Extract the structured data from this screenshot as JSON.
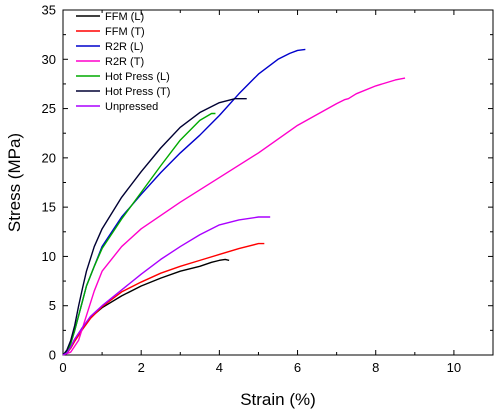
{
  "chart_data": {
    "type": "line",
    "title": "",
    "xlabel": "Strain (%)",
    "ylabel": "Stress (MPa)",
    "xlim": [
      0,
      11
    ],
    "ylim": [
      0,
      35
    ],
    "xticks": [
      0,
      2,
      4,
      6,
      8,
      10
    ],
    "yticks": [
      0,
      5,
      10,
      15,
      20,
      25,
      30,
      35
    ],
    "grid": false,
    "legend_position": "top-left",
    "series": [
      {
        "name": "FFM (L)",
        "color": "#000000",
        "x": [
          0,
          0.1,
          0.2,
          0.3,
          0.5,
          0.7,
          1.0,
          1.5,
          2.0,
          2.5,
          3.0,
          3.5,
          3.8,
          4.0,
          4.15,
          4.25
        ],
        "y": [
          0,
          0.2,
          0.8,
          1.6,
          2.8,
          3.8,
          4.8,
          6.0,
          7.0,
          7.8,
          8.5,
          9.0,
          9.4,
          9.6,
          9.7,
          9.6
        ]
      },
      {
        "name": "FFM (T)",
        "color": "#ff0000",
        "x": [
          0,
          0.1,
          0.2,
          0.3,
          0.5,
          0.7,
          1.0,
          1.5,
          2.0,
          2.5,
          3.0,
          3.5,
          4.0,
          4.5,
          5.0,
          5.15
        ],
        "y": [
          0,
          0.2,
          0.7,
          1.4,
          2.6,
          3.7,
          4.9,
          6.4,
          7.4,
          8.3,
          9.0,
          9.6,
          10.2,
          10.8,
          11.3,
          11.3
        ]
      },
      {
        "name": "R2R (L)",
        "color": "#0000cc",
        "x": [
          0,
          0.1,
          0.2,
          0.3,
          0.4,
          0.5,
          0.6,
          0.8,
          1.0,
          1.5,
          2.0,
          2.5,
          3.0,
          3.5,
          4.0,
          4.5,
          5.0,
          5.5,
          5.8,
          6.0,
          6.2
        ],
        "y": [
          0,
          0.3,
          1.2,
          2.5,
          4.0,
          5.5,
          7.0,
          9.0,
          11.0,
          14.0,
          16.3,
          18.5,
          20.5,
          22.3,
          24.3,
          26.5,
          28.5,
          30.0,
          30.6,
          30.9,
          31.0
        ]
      },
      {
        "name": "R2R (T)",
        "color": "#ff00cc",
        "x": [
          0,
          0.2,
          0.4,
          0.6,
          0.8,
          1.0,
          1.5,
          2.0,
          3.0,
          4.0,
          5.0,
          6.0,
          7.0,
          7.2,
          7.3,
          7.5,
          8.0,
          8.5,
          8.75
        ],
        "y": [
          0,
          0.3,
          1.5,
          4.0,
          6.5,
          8.5,
          11.0,
          12.8,
          15.5,
          18.0,
          20.5,
          23.3,
          25.5,
          25.9,
          26.0,
          26.5,
          27.3,
          27.9,
          28.1
        ]
      },
      {
        "name": "Hot Press (L)",
        "color": "#00aa00",
        "x": [
          0,
          0.1,
          0.2,
          0.3,
          0.4,
          0.5,
          0.6,
          0.8,
          1.0,
          1.5,
          2.0,
          2.5,
          3.0,
          3.5,
          3.8,
          3.9
        ],
        "y": [
          0,
          0.3,
          1.2,
          2.5,
          4.0,
          5.5,
          7.0,
          9.0,
          10.8,
          13.8,
          16.5,
          19.2,
          21.8,
          23.8,
          24.5,
          24.5
        ]
      },
      {
        "name": "Hot Press (T)",
        "color": "#000033",
        "x": [
          0,
          0.1,
          0.2,
          0.3,
          0.4,
          0.5,
          0.6,
          0.8,
          1.0,
          1.5,
          2.0,
          2.5,
          3.0,
          3.5,
          4.0,
          4.4,
          4.7
        ],
        "y": [
          0,
          0.5,
          1.5,
          3.0,
          5.0,
          6.8,
          8.5,
          11.0,
          12.8,
          16.0,
          18.6,
          21.0,
          23.1,
          24.6,
          25.6,
          26.0,
          26.0
        ]
      },
      {
        "name": "Unpressed",
        "color": "#aa00ff",
        "x": [
          0,
          0.1,
          0.2,
          0.3,
          0.5,
          0.7,
          1.0,
          1.5,
          2.0,
          2.5,
          3.0,
          3.5,
          4.0,
          4.5,
          5.0,
          5.3
        ],
        "y": [
          0,
          0.2,
          0.8,
          1.6,
          2.8,
          3.9,
          5.0,
          6.6,
          8.2,
          9.7,
          11.0,
          12.2,
          13.2,
          13.7,
          14.0,
          14.0
        ]
      }
    ]
  }
}
